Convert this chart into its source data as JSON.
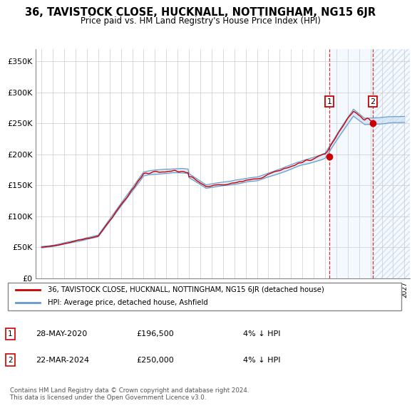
{
  "title": "36, TAVISTOCK CLOSE, HUCKNALL, NOTTINGHAM, NG15 6JR",
  "subtitle": "Price paid vs. HM Land Registry's House Price Index (HPI)",
  "ylim": [
    0,
    370000
  ],
  "yticks": [
    0,
    50000,
    100000,
    150000,
    200000,
    250000,
    300000,
    350000
  ],
  "ytick_labels": [
    "£0",
    "£50K",
    "£100K",
    "£150K",
    "£200K",
    "£250K",
    "£300K",
    "£350K"
  ],
  "background_color": "#ffffff",
  "grid_color": "#cccccc",
  "hpi_color": "#6699cc",
  "hpi_fill_color": "#c8ddf0",
  "price_color": "#cc0000",
  "shade_color": "#ddeeff",
  "t1_year": 2020.37,
  "t2_year": 2024.21,
  "t1_price": 196500,
  "t2_price": 250000,
  "legend_label1": "36, TAVISTOCK CLOSE, HUCKNALL, NOTTINGHAM, NG15 6JR (detached house)",
  "legend_label2": "HPI: Average price, detached house, Ashfield",
  "footnote": "Contains HM Land Registry data © Crown copyright and database right 2024.\nThis data is licensed under the Open Government Licence v3.0.",
  "transaction1": {
    "date": "28-MAY-2020",
    "price": 196500,
    "pct": "4% ↓ HPI"
  },
  "transaction2": {
    "date": "22-MAR-2024",
    "price": 250000,
    "pct": "4% ↓ HPI"
  }
}
